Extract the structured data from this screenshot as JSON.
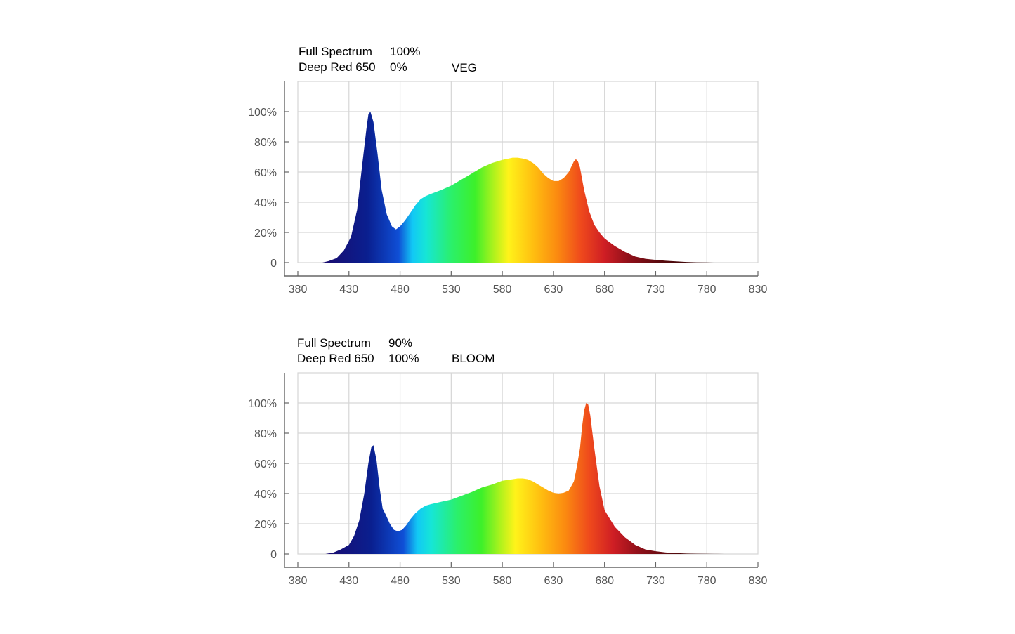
{
  "chart_data": [
    {
      "type": "area",
      "mode": "VEG",
      "legend": [
        {
          "name": "Full Spectrum",
          "value": "100%"
        },
        {
          "name": "Deep Red 650",
          "value": "0%"
        }
      ],
      "x_ticks": [
        "380",
        "430",
        "480",
        "530",
        "580",
        "630",
        "680",
        "730",
        "780",
        "830"
      ],
      "y_ticks": [
        "0",
        "20%",
        "40%",
        "60%",
        "80%",
        "100%"
      ],
      "xlim": [
        380,
        830
      ],
      "ylim": [
        0,
        120
      ],
      "grid": true,
      "x": [
        404,
        410,
        418,
        425,
        432,
        438,
        443,
        447,
        449,
        451,
        454,
        458,
        462,
        467,
        472,
        476,
        480,
        485,
        490,
        495,
        500,
        505,
        510,
        520,
        530,
        540,
        550,
        560,
        570,
        580,
        590,
        595,
        600,
        605,
        610,
        615,
        620,
        625,
        630,
        635,
        640,
        645,
        650,
        652,
        654,
        656,
        660,
        665,
        670,
        675,
        680,
        690,
        700,
        710,
        720,
        730,
        740,
        750,
        760,
        770,
        780,
        787
      ],
      "y": [
        0,
        1,
        3,
        8,
        17,
        35,
        65,
        88,
        98,
        100,
        93,
        72,
        48,
        32,
        24,
        22,
        24,
        28,
        33,
        38,
        42,
        44,
        45.5,
        48,
        51,
        55,
        59,
        63,
        66,
        68,
        69.5,
        69.5,
        69,
        68,
        66,
        63,
        59,
        56,
        54,
        54,
        56,
        60,
        67,
        68.5,
        67,
        63,
        48,
        34,
        25,
        20,
        16,
        11,
        7,
        4,
        2.5,
        1.8,
        1.2,
        0.8,
        0.4,
        0.2,
        0.1,
        0
      ]
    },
    {
      "type": "area",
      "mode": "BLOOM",
      "legend": [
        {
          "name": "Full Spectrum",
          "value": "90%"
        },
        {
          "name": "Deep Red 650",
          "value": "100%"
        }
      ],
      "x_ticks": [
        "380",
        "430",
        "480",
        "530",
        "580",
        "630",
        "680",
        "730",
        "780",
        "830"
      ],
      "y_ticks": [
        "0",
        "20%",
        "40%",
        "60%",
        "80%",
        "100%"
      ],
      "xlim": [
        380,
        830
      ],
      "ylim": [
        0,
        120
      ],
      "grid": true,
      "x": [
        407,
        415,
        422,
        430,
        435,
        440,
        445,
        449,
        452,
        454,
        457,
        460,
        463,
        466,
        470,
        474,
        478,
        482,
        486,
        490,
        495,
        500,
        505,
        510,
        520,
        530,
        540,
        550,
        560,
        570,
        580,
        590,
        595,
        600,
        605,
        610,
        615,
        620,
        625,
        630,
        635,
        640,
        645,
        650,
        653,
        656,
        658,
        660,
        662,
        664,
        666,
        670,
        675,
        680,
        690,
        700,
        710,
        720,
        730,
        740,
        750,
        760,
        770,
        780,
        790,
        798
      ],
      "y": [
        0,
        1,
        3,
        6,
        12,
        22,
        40,
        60,
        71,
        72,
        62,
        44,
        30,
        26,
        20,
        16,
        15,
        16,
        19,
        23,
        27,
        30,
        32,
        33,
        34.5,
        36,
        38.5,
        41,
        44,
        46,
        48.5,
        49.5,
        50,
        50,
        49.5,
        48,
        46,
        44,
        42,
        40.5,
        40,
        40.5,
        42,
        48,
        58,
        70,
        84,
        95,
        100,
        99,
        92,
        70,
        45,
        29,
        18,
        11,
        6,
        3,
        1.8,
        1,
        0.6,
        0.3,
        0.2,
        0.1,
        0.05,
        0
      ]
    }
  ]
}
